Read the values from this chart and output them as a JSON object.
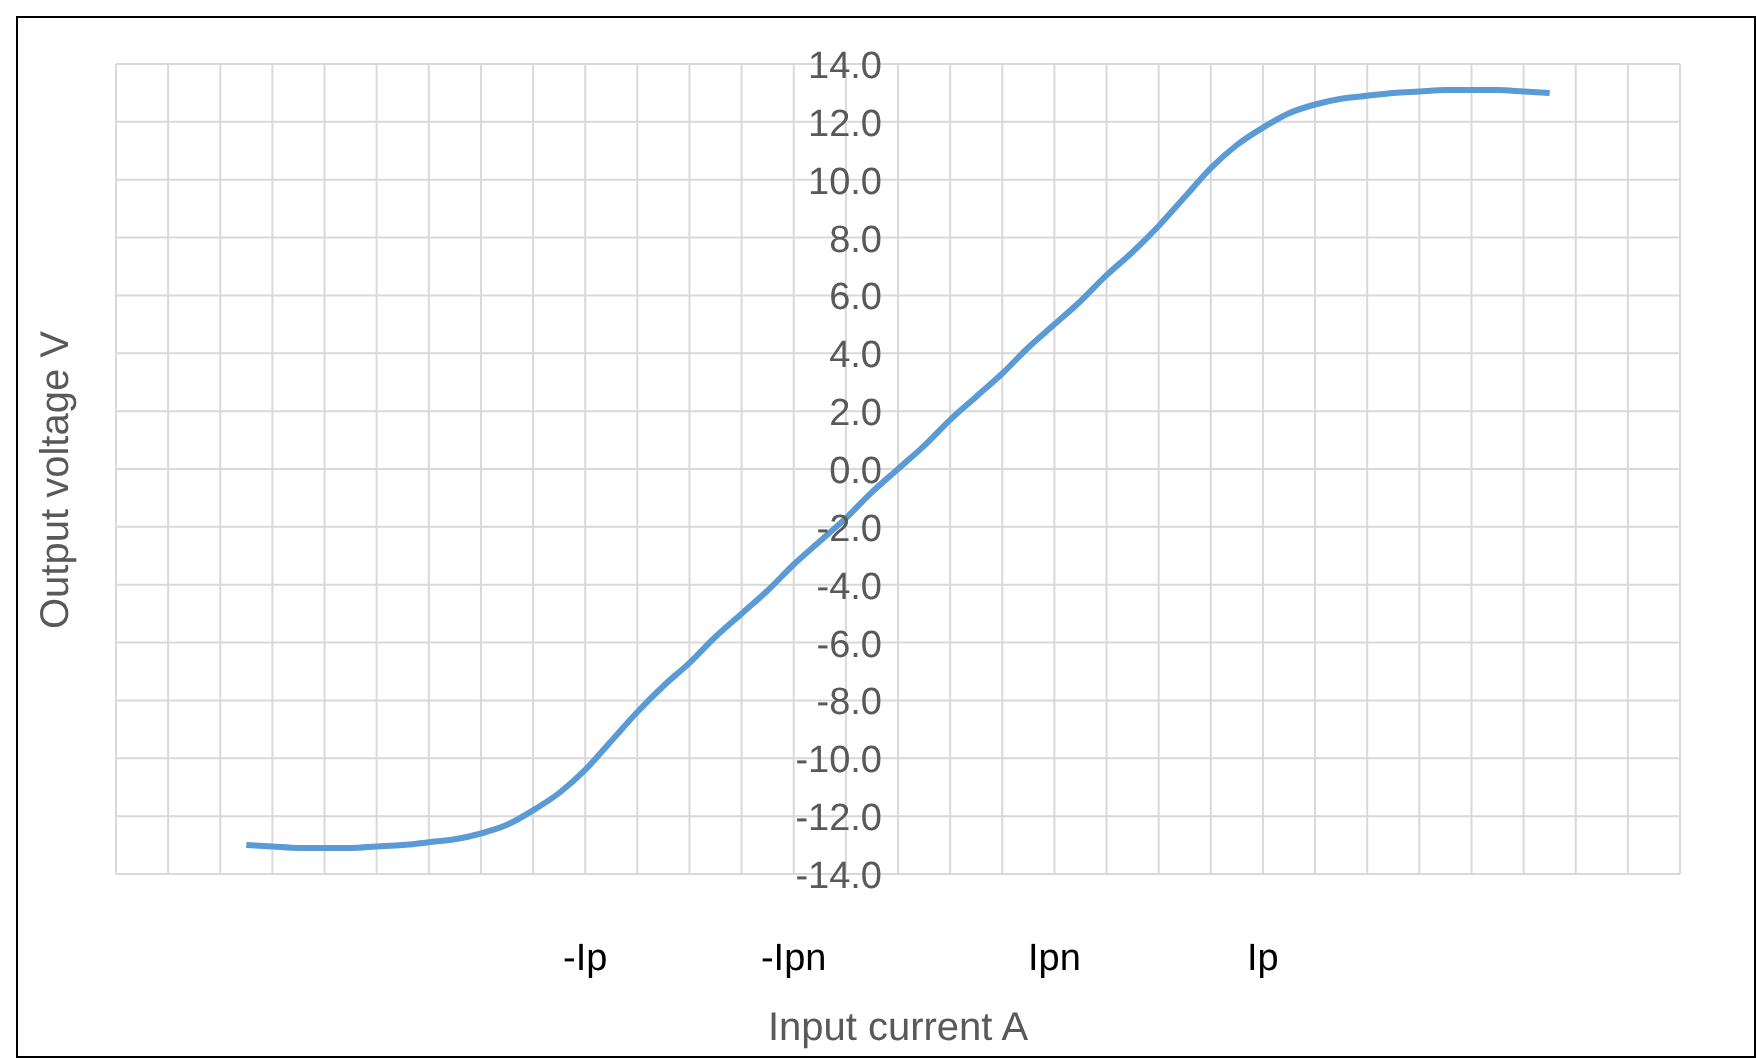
{
  "chart_data": {
    "type": "line",
    "xlabel": "Input current A",
    "ylabel": "Output voltage V",
    "categories": [
      null,
      null,
      null,
      null,
      null,
      null,
      null,
      null,
      null,
      null,
      null,
      null,
      null,
      null,
      null,
      null,
      null,
      null,
      "-Ip",
      null,
      null,
      null,
      null,
      null,
      null,
      null,
      "-Ipn",
      null,
      null,
      null,
      null,
      null,
      null,
      null,
      null,
      null,
      "Ipn",
      null,
      null,
      null,
      null,
      null,
      null,
      null,
      "Ip",
      null,
      null,
      null,
      null,
      null,
      null,
      null,
      null,
      null,
      null,
      null,
      null,
      null,
      null,
      null,
      null
    ],
    "series": [
      {
        "color": "#5b9bd5",
        "values": [
          null,
          null,
          null,
          null,
          null,
          -13.0,
          -13.05,
          -13.1,
          -13.1,
          -13.1,
          -13.05,
          -13.0,
          -12.9,
          -12.8,
          -12.6,
          -12.3,
          -11.8,
          -11.2,
          -10.4,
          -9.4,
          -8.4,
          -7.5,
          -6.7,
          -5.8,
          -5.0,
          -4.2,
          -3.3,
          -2.5,
          -1.7,
          -0.8,
          0,
          0.8,
          1.7,
          2.5,
          3.3,
          4.2,
          5.0,
          5.8,
          6.7,
          7.5,
          8.4,
          9.4,
          10.4,
          11.2,
          11.8,
          12.3,
          12.6,
          12.8,
          12.9,
          13.0,
          13.05,
          13.1,
          13.1,
          13.1,
          13.05,
          13.0,
          null,
          null,
          null,
          null,
          null
        ]
      }
    ],
    "ylim": [
      -14,
      14
    ],
    "yticks": [
      {
        "value": -14,
        "label": "-14.0"
      },
      {
        "value": -12,
        "label": "-12.0"
      },
      {
        "value": -10,
        "label": "-10.0"
      },
      {
        "value": -8,
        "label": "-8.0"
      },
      {
        "value": -6,
        "label": "-6.0"
      },
      {
        "value": -4,
        "label": "-4.0"
      },
      {
        "value": -2,
        "label": "-2.0"
      },
      {
        "value": 0,
        "label": "0.0"
      },
      {
        "value": 2,
        "label": "2.0"
      },
      {
        "value": 4,
        "label": "4.0"
      },
      {
        "value": 6,
        "label": "6.0"
      },
      {
        "value": 8,
        "label": "8.0"
      },
      {
        "value": 10,
        "label": "10.0"
      },
      {
        "value": 12,
        "label": "12.0"
      },
      {
        "value": 14,
        "label": "14.0"
      }
    ],
    "grid": true,
    "marker": "none",
    "line_style": "solid",
    "legend": false
  }
}
